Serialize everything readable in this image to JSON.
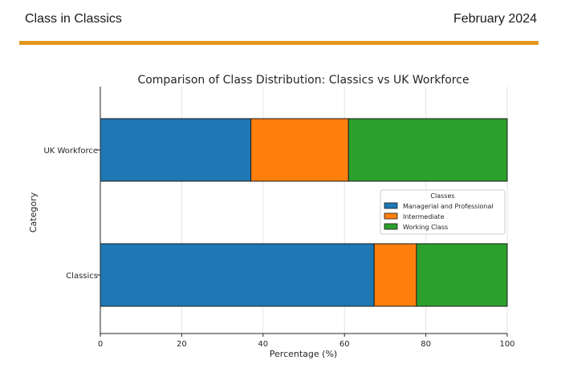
{
  "document": {
    "title": "Class in Classics",
    "date": "February 2024"
  },
  "colors": {
    "accent_rule": "#e2971f"
  },
  "chart_data": {
    "type": "bar",
    "orientation": "horizontal",
    "stacked": true,
    "title": "Comparison of Class Distribution: Classics vs UK Workforce",
    "xlabel": "Percentage (%)",
    "ylabel": "Category",
    "categories": [
      "UK Workforce",
      "Classics"
    ],
    "xlim": [
      0,
      100
    ],
    "xticks": [
      0,
      20,
      40,
      60,
      80,
      100
    ],
    "grid": true,
    "legend": {
      "title": "Classes",
      "placement": "right"
    },
    "series": [
      {
        "name": "Managerial and Professional",
        "color": "#1f77b4",
        "values": [
          37,
          67.3
        ]
      },
      {
        "name": "Intermediate",
        "color": "#ff7f0e",
        "values": [
          24,
          10.4
        ]
      },
      {
        "name": "Working Class",
        "color": "#2ca02c",
        "values": [
          39,
          22.3
        ]
      }
    ]
  }
}
